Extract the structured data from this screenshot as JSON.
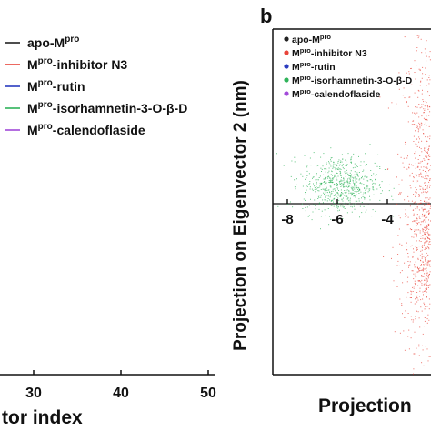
{
  "colors": {
    "apo": "#222222",
    "inhibitor": "#e8443a",
    "rutin": "#2a3bbf",
    "isorhamnetin": "#2fb35a",
    "calendoflaside": "#a24ad9",
    "axis": "#111111"
  },
  "chart_data": [
    {
      "type": "line",
      "panel_label": "",
      "xlabel": "tor index",
      "ylabel": "",
      "x_ticks": [
        30,
        40,
        50
      ],
      "xlim": [
        20,
        51
      ],
      "series": [
        {
          "name": "apo-M",
          "sup": "pro",
          "suffix": "",
          "color_key": "apo",
          "values": []
        },
        {
          "name": "M",
          "sup": "pro",
          "suffix": "-inhibitor N3",
          "color_key": "inhibitor",
          "values": []
        },
        {
          "name": "M",
          "sup": "pro",
          "suffix": "-rutin",
          "color_key": "rutin",
          "values": []
        },
        {
          "name": "M",
          "sup": "pro",
          "suffix": "-isorhamnetin-3-O-β-D",
          "color_key": "isorhamnetin",
          "values": []
        },
        {
          "name": "M",
          "sup": "pro",
          "suffix": "-calendoflaside",
          "color_key": "calendoflaside",
          "values": []
        }
      ],
      "legend": "top-left"
    },
    {
      "type": "scatter",
      "panel_label": "b",
      "xlabel": "Projection",
      "ylabel": "Projection on Eigenvector 2 (nm)",
      "x_ticks": [
        -8,
        -6,
        -4
      ],
      "xlim": [
        -8.2,
        -1.8
      ],
      "series": [
        {
          "name": "apo-M",
          "sup": "pro",
          "suffix": "",
          "color_key": "apo",
          "clusters": []
        },
        {
          "name": "M",
          "sup": "pro",
          "suffix": "-inhibitor N3",
          "color_key": "inhibitor",
          "clusters": [
            {
              "x_center": -2.4,
              "x_spread": 0.55,
              "y_center": 0.5,
              "y_spread": 2.4,
              "points": 900
            },
            {
              "x_center": -2.3,
              "x_spread": 0.5,
              "y_center": -1.8,
              "y_spread": 1.2,
              "points": 500
            }
          ]
        },
        {
          "name": "M",
          "sup": "pro",
          "suffix": "-rutin",
          "color_key": "rutin",
          "clusters": []
        },
        {
          "name": "M",
          "sup": "pro",
          "suffix": "-isorhamnetin-3-O-β-D",
          "color_key": "isorhamnetin",
          "clusters": [
            {
              "x_center": -5.9,
              "x_spread": 0.75,
              "y_center": 0.6,
              "y_spread": 0.45,
              "points": 650
            }
          ]
        },
        {
          "name": "M",
          "sup": "pro",
          "suffix": "-calendoflaside",
          "color_key": "calendoflaside",
          "clusters": []
        }
      ],
      "legend": "top-left"
    }
  ]
}
